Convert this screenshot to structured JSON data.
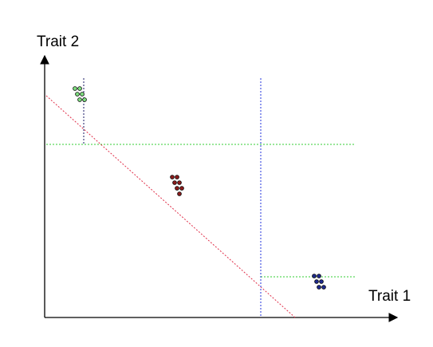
{
  "axes": {
    "x_label": "Trait 1",
    "y_label": "Trait 2"
  },
  "clusters": [
    {
      "name": "green",
      "points": 6
    },
    {
      "name": "red",
      "points": 7
    },
    {
      "name": "blue",
      "points": 6
    }
  ],
  "colors": {
    "axis": "#000000",
    "green_point": "#7fe07f",
    "red_point": "#8b1c1c",
    "blue_point": "#1f2a8f",
    "green_line": "#33cc33",
    "red_line": "#e0304a",
    "blue_line": "#2233dd",
    "navy_line": "#1a1a66",
    "point_outline": "#000000"
  }
}
